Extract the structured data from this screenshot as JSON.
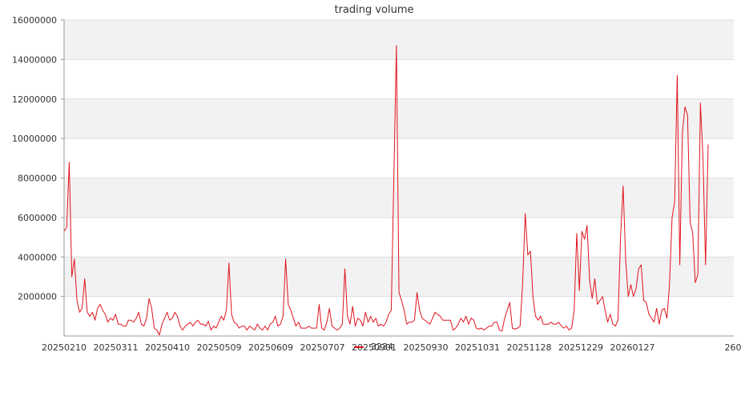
{
  "chart_data": {
    "type": "line",
    "title": "trading volume",
    "xlabel": "",
    "ylabel": "",
    "ylim": [
      0,
      16000000
    ],
    "grid": "horizontal bands",
    "legend_position": "bottom-center",
    "y_ticks": [
      "2000000",
      "4000000",
      "6000000",
      "8000000",
      "10000000",
      "12000000",
      "14000000",
      "16000000"
    ],
    "x_tick_labels": [
      "20250210",
      "20250311",
      "20250410",
      "20250509",
      "20250609",
      "20250707",
      "20250901",
      "20250930",
      "20251031",
      "20251128",
      "20251229",
      "20260127",
      "260"
    ],
    "colors": {
      "series": "#e0141e",
      "band": "#f2f2f2",
      "grid": "#dddddd",
      "axis": "#999999"
    },
    "series": [
      {
        "name": "3234",
        "values": [
          5300000,
          5500000,
          8800000,
          3000000,
          3900000,
          1800000,
          1200000,
          1400000,
          2900000,
          1200000,
          1000000,
          1200000,
          800000,
          1400000,
          1600000,
          1300000,
          1100000,
          700000,
          900000,
          800000,
          1100000,
          600000,
          600000,
          500000,
          500000,
          800000,
          800000,
          700000,
          900000,
          1200000,
          600000,
          500000,
          900000,
          1900000,
          1400000,
          400000,
          300000,
          50000,
          600000,
          900000,
          1200000,
          800000,
          900000,
          1200000,
          1000000,
          500000,
          300000,
          500000,
          600000,
          700000,
          500000,
          700000,
          800000,
          600000,
          600000,
          500000,
          750000,
          300000,
          500000,
          400000,
          700000,
          1000000,
          800000,
          1300000,
          3700000,
          1100000,
          700000,
          600000,
          400000,
          500000,
          500000,
          300000,
          500000,
          400000,
          300000,
          600000,
          400000,
          300000,
          500000,
          300000,
          600000,
          700000,
          1000000,
          500000,
          600000,
          1000000,
          3900000,
          1600000,
          1300000,
          900000,
          500000,
          700000,
          400000,
          400000,
          400000,
          500000,
          400000,
          400000,
          400000,
          1600000,
          400000,
          300000,
          700000,
          1400000,
          500000,
          400000,
          300000,
          400000,
          600000,
          3400000,
          1000000,
          600000,
          1500000,
          500000,
          900000,
          800000,
          500000,
          1200000,
          700000,
          1000000,
          700000,
          900000,
          500000,
          600000,
          500000,
          700000,
          1100000,
          1300000,
          8000000,
          14700000,
          2200000,
          1800000,
          1300000,
          600000,
          700000,
          700000,
          800000,
          2200000,
          1300000,
          900000,
          800000,
          700000,
          600000,
          900000,
          1200000,
          1100000,
          1000000,
          800000,
          800000,
          800000,
          800000,
          300000,
          400000,
          600000,
          900000,
          700000,
          1000000,
          600000,
          900000,
          800000,
          400000,
          350000,
          400000,
          300000,
          400000,
          500000,
          500000,
          700000,
          700000,
          300000,
          250000,
          900000,
          1300000,
          1700000,
          400000,
          350000,
          400000,
          500000,
          2700000,
          6200000,
          4100000,
          4300000,
          2000000,
          1000000,
          800000,
          1000000,
          600000,
          600000,
          600000,
          700000,
          600000,
          600000,
          700000,
          500000,
          400000,
          500000,
          300000,
          400000,
          1300000,
          5200000,
          2300000,
          5300000,
          4900000,
          5600000,
          2800000,
          1900000,
          2900000,
          1600000,
          1800000,
          2000000,
          1300000,
          700000,
          1100000,
          600000,
          500000,
          800000,
          5000000,
          7600000,
          3800000,
          2000000,
          2600000,
          2000000,
          2400000,
          3400000,
          3600000,
          1800000,
          1700000,
          1100000,
          900000,
          700000,
          1400000,
          600000,
          1300000,
          1400000,
          900000,
          2600000,
          6000000,
          6800000,
          13200000,
          3600000,
          10300000,
          11600000,
          11200000,
          5800000,
          5200000,
          2700000,
          3100000,
          11800000,
          9000000,
          3600000,
          9700000
        ]
      }
    ]
  }
}
